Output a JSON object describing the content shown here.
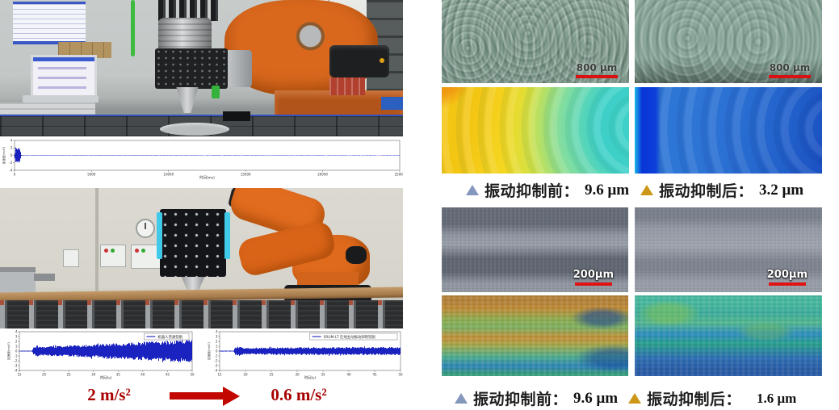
{
  "colors": {
    "accent_red": "#c20600",
    "wave_blue": "#0009b8",
    "triangle_before": "#8497bc",
    "triangle_after": "#cc9718",
    "robot_orange": "#d9681d"
  },
  "left_panel": {
    "result_before": "2 m/s²",
    "result_after": "0.6 m/s²"
  },
  "right_panel": {
    "milling_block": {
      "scalebar_label": "800 μm",
      "caption_before_label": "振动抑制前：",
      "caption_before_value": "9.6 μm",
      "caption_after_label": "振动抑制后：",
      "caption_after_value": "3.2 μm"
    },
    "polish_block": {
      "scalebar_label": "200μm",
      "caption_before_label": "振动抑制前：",
      "caption_before_value": "9.6 μm",
      "caption_after_label": "振动抑制后：",
      "caption_after_value": "1.6 μm"
    }
  },
  "chart_data": [
    {
      "id": "strip",
      "type": "line",
      "title": "",
      "xlabel": "时间(ms)",
      "ylabel": "加速度(m/s²)",
      "xlim": [
        0,
        25000
      ],
      "ylim": [
        -4,
        4
      ],
      "xticks": [
        0,
        5000,
        10000,
        15000,
        20000,
        25000
      ],
      "yticks": [
        -4,
        -2,
        0,
        2,
        4
      ],
      "legend": null,
      "series_color": "#0009b8",
      "envelope": [
        [
          0,
          0.05
        ],
        [
          80,
          2.3
        ],
        [
          300,
          2.3
        ],
        [
          450,
          0.06
        ],
        [
          25000,
          0.05
        ]
      ],
      "seed": 11
    },
    {
      "id": "wave_before",
      "type": "line",
      "title": "",
      "xlabel": "时间(s)",
      "ylabel": "加速度(m/s²)",
      "xlim": [
        15,
        50
      ],
      "ylim": [
        -4,
        4
      ],
      "xticks": [
        15,
        20,
        25,
        30,
        35,
        40,
        45,
        50
      ],
      "yticks": [
        -4,
        -3,
        -2,
        -1,
        0,
        1,
        2,
        3,
        4
      ],
      "legend": "机器人普通铣削",
      "series_color": "#0009b8",
      "envelope": [
        [
          15,
          0.1
        ],
        [
          17.6,
          0.1
        ],
        [
          17.9,
          0.85
        ],
        [
          18.6,
          1.15
        ],
        [
          19.6,
          0.95
        ],
        [
          22,
          1.05
        ],
        [
          28,
          1.3
        ],
        [
          36,
          1.7
        ],
        [
          44,
          2.1
        ],
        [
          50,
          2.5
        ]
      ],
      "peak_label": "2 m/s²",
      "seed": 23
    },
    {
      "id": "wave_after",
      "type": "line",
      "title": "",
      "xlabel": "时间(s)",
      "ylabel": "加速度(m/s²)",
      "xlim": [
        15,
        50
      ],
      "ylim": [
        -4,
        4
      ],
      "xticks": [
        15,
        20,
        25,
        30,
        35,
        40,
        45,
        50
      ],
      "yticks": [
        -4,
        -3,
        -2,
        -1,
        0,
        1,
        2,
        3,
        4
      ],
      "legend": "SRUM-LT 在线主动振动抑制铣削",
      "series_color": "#0009b8",
      "envelope": [
        [
          15,
          0.1
        ],
        [
          17.7,
          0.1
        ],
        [
          18.0,
          0.8
        ],
        [
          18.8,
          1.0
        ],
        [
          19.8,
          0.72
        ],
        [
          25,
          0.78
        ],
        [
          35,
          0.82
        ],
        [
          45,
          0.85
        ],
        [
          50,
          0.88
        ]
      ],
      "peak_label": "0.6 m/s²",
      "seed": 57
    }
  ]
}
